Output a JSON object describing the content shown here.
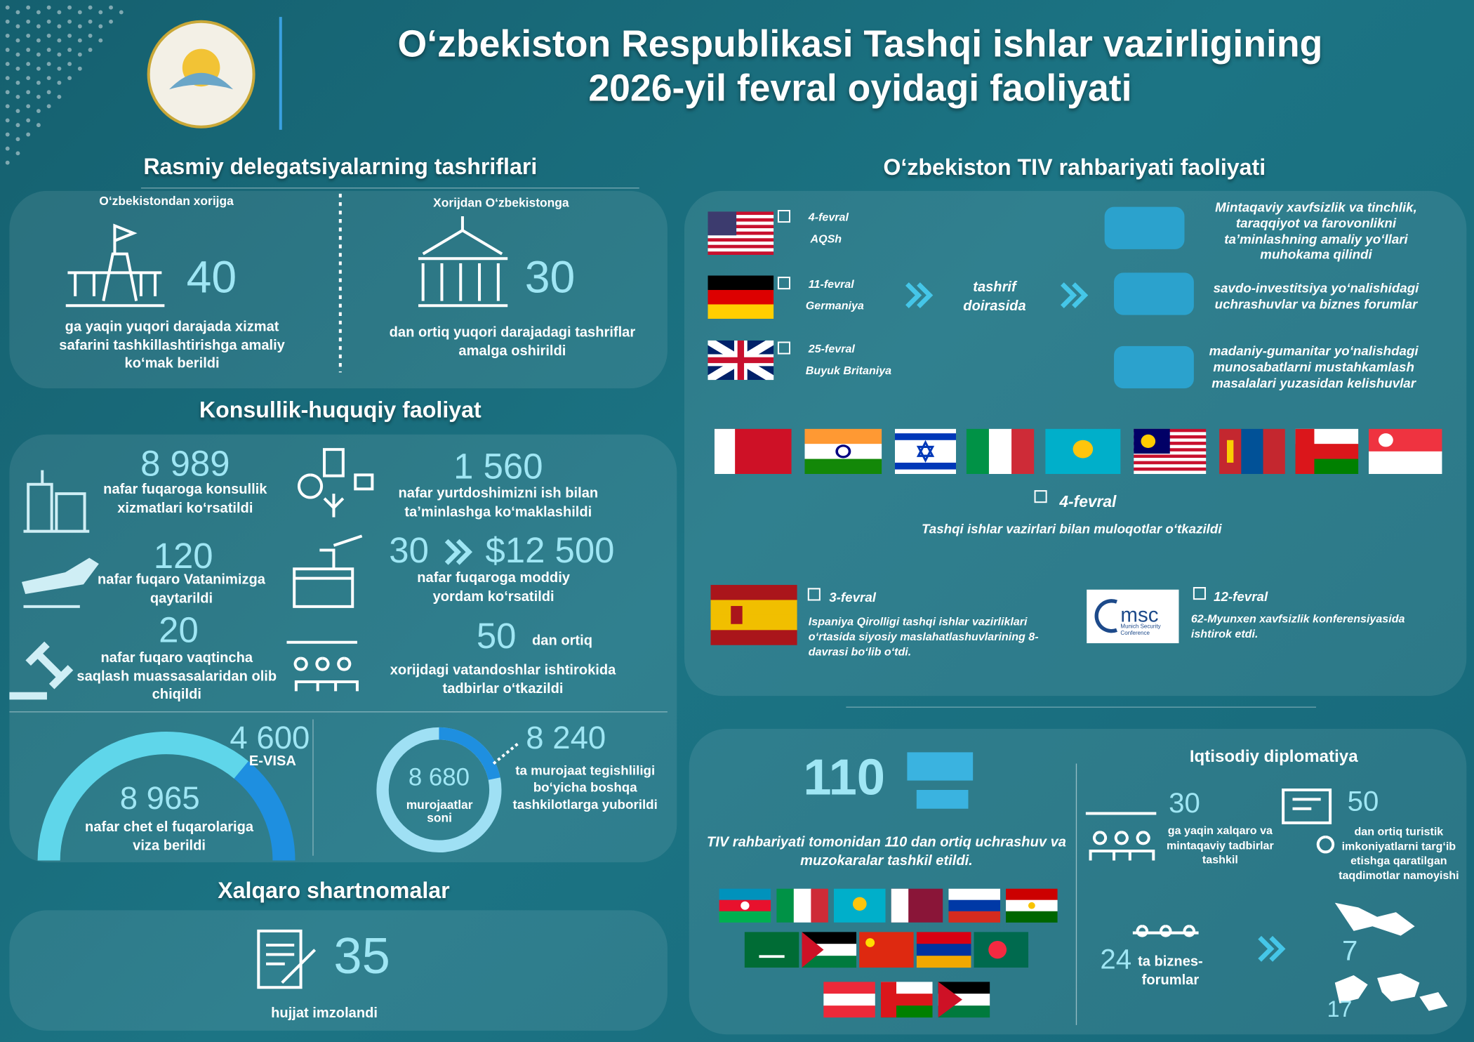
{
  "header": {
    "title_line1": "O‘zbekiston Respublikasi Tashqi ishlar vazirligining",
    "title_line2": "2026-yil fevral oyidagi faoliyati"
  },
  "delegations": {
    "title": "Rasmiy delegatsiyalarning tashriflari",
    "outgoing": {
      "label": "O‘zbekistondan xorijga",
      "number": 40,
      "text": "ga yaqin yuqori darajada xizmat safarini tashkillashtirishga amaliy ko‘mak berildi"
    },
    "incoming": {
      "label": "Xorijdan O‘zbekistonga",
      "number": 30,
      "text": "dan ortiq yuqori darajadagi tashriflar amalga oshirildi"
    }
  },
  "consular": {
    "title": "Konsullik-huquqiy faoliyat",
    "services": {
      "number": "8 989",
      "text": "nafar fuqaroga konsullik xizmatlari ko‘rsatildi"
    },
    "employment": {
      "number": "1 560",
      "text": "nafar yurtdoshimizni ish bilan ta’minlashga ko‘maklashildi"
    },
    "returned": {
      "number": 120,
      "text": "nafar fuqaro Vatanimizga qaytarildi"
    },
    "aid": {
      "number": 30,
      "amount": "$12 500",
      "text": "nafar fuqaroga moddiy yordam ko‘rsatildi"
    },
    "released": {
      "number": 20,
      "text": "nafar fuqaro vaqtincha saqlash muassasalaridan olib chiqildi"
    },
    "events": {
      "number": 50,
      "suffix": "dan ortiq",
      "text": "xorijdagi vatandoshlar ishtirokida tadbirlar o‘tkazildi"
    },
    "visa": {
      "number": "8 965",
      "text": "nafar chet el fuqarolariga viza berildi",
      "evisa_number": "4 600",
      "evisa_label": "E-VISA"
    },
    "appeals": {
      "number": "8 680",
      "label": "murojaatlar soni",
      "forwarded_number": "8 240",
      "forwarded_text": "ta murojaat tegishliligi bo‘yicha boshqa tashkilotlarga yuborildi"
    }
  },
  "treaties": {
    "title": "Xalqaro shartnomalar",
    "number": 35,
    "text": "hujjat imzolandi"
  },
  "leadership": {
    "title": "O‘zbekiston TIV rahbariyati faoliyati",
    "visits": [
      {
        "date": "4-fevral",
        "country": "AQSh"
      },
      {
        "date": "11-fevral",
        "country": "Germaniya"
      },
      {
        "date": "25-fevral",
        "country": "Buyuk Britaniya"
      }
    ],
    "visits_caption": "tashrif doirasida",
    "topics": [
      "Mintaqaviy xavfsizlik va tinchlik, taraqqiyot va farovonlikni ta’minlashning amaliy yo‘llari muhokama qilindi",
      "savdo-investitsiya yo‘nalishidagi uchrashuvlar va biznes forumlar",
      "madaniy-gumanitar yo‘nalishdagi munosabatlarni mustahkamlash masalalari yuzasidan kelishuvlar"
    ],
    "talks": {
      "date": "4-fevral",
      "text": "Tashqi ishlar vazirlari bilan muloqotlar o‘tkazildi"
    },
    "spain": {
      "date": "3-fevral",
      "text": "Ispaniya Qirolligi tashqi ishlar vazirliklari o‘rtasida siyosiy maslahatlashuvlarining 8-davrasi bo‘lib o‘tdi."
    },
    "msc": {
      "logo": "msc",
      "logo_sub": "Munich Security Conference",
      "date": "12-fevral",
      "text": "62-Myunxen xavfsizlik konferensiyasida ishtirok etdi."
    }
  },
  "economic": {
    "meetings_number": 110,
    "meetings_text": "TIV rahbariyati tomonidan 110 dan ortiq uchrashuv va muzokaralar tashkil etildi.",
    "title": "Iqtisodiy diplomatiya",
    "events": {
      "number": 30,
      "text": "ga yaqin xalqaro va mintaqaviy tadbirlar tashkil"
    },
    "presentations": {
      "number": 50,
      "text": "dan ortiq turistik imkoniyatlarni targ‘ib etishga qaratilgan taqdimotlar namoyishi"
    },
    "forums": {
      "number": 24,
      "text": "ta biznes-forumlar",
      "domestic": 7,
      "foreign": 17
    }
  }
}
